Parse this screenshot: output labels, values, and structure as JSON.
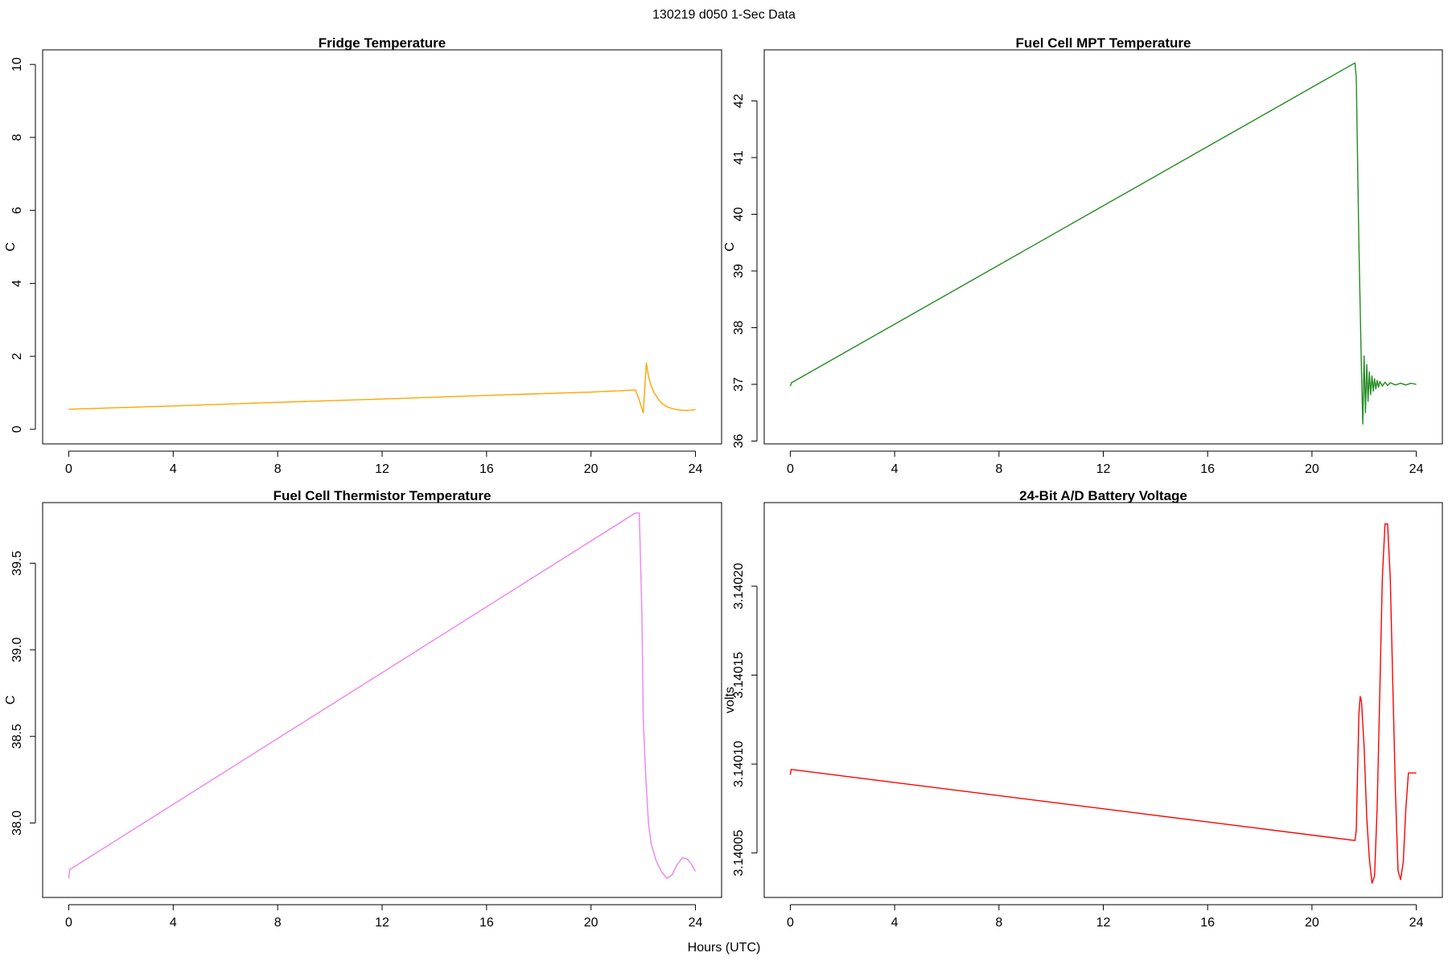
{
  "figure": {
    "title": "130219   d050   1-Sec Data",
    "xlabel": "Hours (UTC)"
  },
  "chart_data": [
    {
      "type": "line",
      "title": "Fridge Temperature",
      "xlabel": "",
      "ylabel": "C",
      "xlim": [
        -1,
        25
      ],
      "ylim": [
        -0.4,
        10.4
      ],
      "xticks": [
        0,
        4,
        8,
        12,
        16,
        20,
        24
      ],
      "yticks": [
        0,
        2,
        4,
        6,
        8,
        10
      ],
      "ytick_labels": [
        "0",
        "2",
        "4",
        "6",
        "8",
        "10"
      ],
      "grid": false,
      "color": "#FFA500",
      "series": [
        {
          "x": [
            0,
            4,
            8,
            12,
            16,
            20,
            21.7,
            21.85,
            22.0,
            22.05,
            22.12,
            22.2,
            22.3,
            22.4,
            22.55,
            22.7,
            22.9,
            23.1,
            23.3,
            23.5,
            23.7,
            23.9,
            24.0
          ],
          "y": [
            0.55,
            0.64,
            0.74,
            0.83,
            0.93,
            1.02,
            1.08,
            0.8,
            0.45,
            1.0,
            1.82,
            1.45,
            1.2,
            1.02,
            0.85,
            0.72,
            0.62,
            0.57,
            0.54,
            0.52,
            0.52,
            0.53,
            0.55
          ]
        }
      ]
    },
    {
      "type": "line",
      "title": "Fuel Cell MPT Temperature",
      "xlabel": "",
      "ylabel": "C",
      "xlim": [
        -1,
        25
      ],
      "ylim": [
        35.95,
        42.9
      ],
      "xticks": [
        0,
        4,
        8,
        12,
        16,
        20,
        24
      ],
      "yticks": [
        36,
        37,
        38,
        39,
        40,
        41,
        42
      ],
      "ytick_labels": [
        "36",
        "37",
        "38",
        "39",
        "40",
        "41",
        "42"
      ],
      "grid": false,
      "color": "#228B22",
      "series": [
        {
          "x": [
            0,
            0.05,
            21.65,
            21.7,
            21.8,
            21.9,
            21.95,
            22.0,
            22.05,
            22.1,
            22.15,
            22.2,
            22.25,
            22.3,
            22.35,
            22.4,
            22.45,
            22.5,
            22.55,
            22.6,
            22.7,
            22.8,
            22.9,
            23.0,
            23.2,
            23.4,
            23.6,
            23.8,
            24.0
          ],
          "y": [
            36.97,
            37.03,
            42.67,
            42.4,
            39.5,
            37.2,
            36.3,
            37.5,
            36.5,
            37.35,
            36.7,
            37.22,
            36.82,
            37.15,
            36.88,
            37.1,
            36.92,
            37.07,
            36.95,
            37.05,
            36.97,
            37.04,
            36.98,
            37.03,
            36.99,
            37.02,
            36.99,
            37.02,
            37.0
          ]
        }
      ]
    },
    {
      "type": "line",
      "title": "Fuel Cell Thermistor Temperature",
      "xlabel": "",
      "ylabel": "C",
      "xlim": [
        -1,
        25
      ],
      "ylim": [
        37.57,
        39.85
      ],
      "xticks": [
        0,
        4,
        8,
        12,
        16,
        20,
        24
      ],
      "yticks": [
        38.0,
        38.5,
        39.0,
        39.5
      ],
      "ytick_labels": [
        "38.0",
        "38.5",
        "39.0",
        "39.5"
      ],
      "grid": false,
      "color": "#EE82EE",
      "series": [
        {
          "x": [
            0,
            0.03,
            21.7,
            21.85,
            21.95,
            22.0,
            22.1,
            22.2,
            22.3,
            22.5,
            22.7,
            22.9,
            23.1,
            23.3,
            23.5,
            23.7,
            23.85,
            24.0
          ],
          "y": [
            37.68,
            37.73,
            39.79,
            39.79,
            39.2,
            38.6,
            38.25,
            38.0,
            37.88,
            37.78,
            37.72,
            37.68,
            37.7,
            37.76,
            37.8,
            37.79,
            37.76,
            37.72
          ]
        }
      ]
    },
    {
      "type": "line",
      "title": "24-Bit A/D Battery Voltage",
      "xlabel": "",
      "ylabel": "volts",
      "xlim": [
        -1,
        25
      ],
      "ylim": [
        3.140025,
        3.140247
      ],
      "xticks": [
        0,
        4,
        8,
        12,
        16,
        20,
        24
      ],
      "yticks": [
        3.14005,
        3.1401,
        3.14015,
        3.1402
      ],
      "ytick_labels": [
        "3.14005",
        "3.14010",
        "3.14015",
        "3.14020"
      ],
      "grid": false,
      "color": "#FF0000",
      "series": [
        {
          "x": [
            0,
            0.03,
            21.65,
            21.7,
            21.75,
            21.8,
            21.85,
            21.9,
            22.0,
            22.1,
            22.2,
            22.3,
            22.4,
            22.5,
            22.6,
            22.7,
            22.8,
            22.9,
            23.0,
            23.1,
            23.2,
            23.3,
            23.4,
            23.5,
            23.6,
            23.7,
            23.8,
            23.9,
            24.0
          ],
          "y": [
            3.140094,
            3.140097,
            3.140057,
            3.140063,
            3.140095,
            3.140128,
            3.140138,
            3.140135,
            3.14011,
            3.14007,
            3.140047,
            3.140033,
            3.140037,
            3.140075,
            3.14014,
            3.140205,
            3.140235,
            3.140235,
            3.140205,
            3.140145,
            3.140085,
            3.14004,
            3.140035,
            3.140045,
            3.140075,
            3.140095,
            3.140095,
            3.140095,
            3.140095
          ]
        }
      ]
    }
  ]
}
